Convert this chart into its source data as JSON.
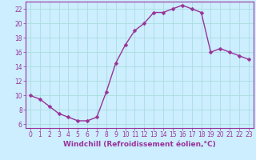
{
  "x": [
    0,
    1,
    2,
    3,
    4,
    5,
    6,
    7,
    8,
    9,
    10,
    11,
    12,
    13,
    14,
    15,
    16,
    17,
    18,
    19,
    20,
    21,
    22,
    23
  ],
  "y": [
    10,
    9.5,
    8.5,
    7.5,
    7,
    6.5,
    6.5,
    7,
    10.5,
    14.5,
    17,
    19,
    20,
    21.5,
    21.5,
    22,
    22.5,
    22,
    21.5,
    16,
    16.5,
    16,
    15.5,
    15
  ],
  "line_color": "#993399",
  "marker": "D",
  "marker_size": 2.5,
  "linewidth": 1.0,
  "xlabel": "Windchill (Refroidissement éolien,°C)",
  "bg_color": "#cceeff",
  "grid_color": "#aadddd",
  "xlim": [
    -0.5,
    23.5
  ],
  "ylim": [
    5.5,
    23
  ],
  "xticks": [
    0,
    1,
    2,
    3,
    4,
    5,
    6,
    7,
    8,
    9,
    10,
    11,
    12,
    13,
    14,
    15,
    16,
    17,
    18,
    19,
    20,
    21,
    22,
    23
  ],
  "yticks": [
    6,
    8,
    10,
    12,
    14,
    16,
    18,
    20,
    22
  ],
  "tick_color": "#993399",
  "tick_fontsize": 5.5,
  "xlabel_fontsize": 6.5
}
